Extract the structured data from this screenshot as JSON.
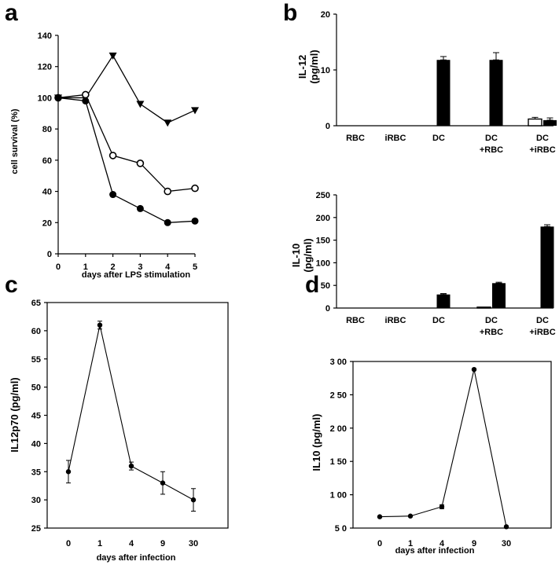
{
  "panels": {
    "a": "a",
    "b": "b",
    "c": "c",
    "d": "d"
  },
  "colors": {
    "ink": "#000000",
    "paper": "#ffffff"
  },
  "chart_data": [
    {
      "id": "a",
      "type": "line",
      "title": "",
      "xlabel": "days after LPS stimulation",
      "ylabel": "cell survival (%)",
      "x": [
        0,
        1,
        2,
        3,
        4,
        5
      ],
      "xticks": [
        "0",
        "1",
        "2",
        "3",
        "4",
        "5"
      ],
      "xlim": [
        0,
        5
      ],
      "ylim": [
        0,
        140
      ],
      "yticks": [
        "0",
        "20",
        "40",
        "60",
        "80",
        "100",
        "120",
        "140"
      ],
      "series": [
        {
          "name": "triangle",
          "marker": "triangle-down",
          "values": [
            100,
            100,
            127,
            96,
            84,
            92
          ]
        },
        {
          "name": "open-circle",
          "marker": "open-circle",
          "values": [
            100,
            102,
            63,
            58,
            40,
            42
          ]
        },
        {
          "name": "filled-circle",
          "marker": "filled-circle",
          "values": [
            100,
            98,
            38,
            29,
            20,
            21
          ]
        }
      ]
    },
    {
      "id": "b-top",
      "type": "bar",
      "ylabel": "IL-12",
      "yunit": "(pg/ml)",
      "categories": [
        [
          "RBC"
        ],
        [
          "iRBC"
        ],
        [
          "DC"
        ],
        [
          "DC",
          "+RBC"
        ],
        [
          "DC",
          "+iRBC"
        ]
      ],
      "ylim": [
        0,
        20
      ],
      "yticks": [
        "0",
        "10",
        "20"
      ],
      "series": [
        {
          "name": "open",
          "values": [
            0,
            0,
            0,
            0,
            1.2
          ],
          "errors": [
            0,
            0,
            0,
            0,
            0.3
          ]
        },
        {
          "name": "filled",
          "values": [
            0,
            0,
            11.8,
            11.8,
            1.0
          ],
          "errors": [
            0,
            0,
            0.6,
            1.3,
            0.4
          ]
        }
      ]
    },
    {
      "id": "b-bottom",
      "type": "bar",
      "ylabel": "IL-10",
      "yunit": "(pg/ml)",
      "categories": [
        [
          "RBC"
        ],
        [
          "iRBC"
        ],
        [
          "DC"
        ],
        [
          "DC",
          "+RBC"
        ],
        [
          "DC",
          "+iRBC"
        ]
      ],
      "ylim": [
        0,
        250
      ],
      "yticks": [
        "0",
        "50",
        "100",
        "150",
        "200",
        "250"
      ],
      "series": [
        {
          "name": "open",
          "values": [
            0,
            0,
            0,
            2,
            0
          ],
          "errors": [
            0,
            0,
            0,
            0,
            0
          ]
        },
        {
          "name": "filled",
          "values": [
            0,
            0,
            30,
            55,
            180
          ],
          "errors": [
            0,
            0,
            2,
            2,
            4
          ]
        }
      ]
    },
    {
      "id": "c",
      "type": "line",
      "xlabel": "days after infection",
      "ylabel": "IL12p70  (pg/ml)",
      "categories": [
        "0",
        "1",
        "4",
        "9",
        "30"
      ],
      "ylim": [
        25,
        65
      ],
      "yticks": [
        "25",
        "30",
        "35",
        "40",
        "45",
        "50",
        "55",
        "60",
        "65"
      ],
      "series": [
        {
          "name": "IL12p70",
          "values": [
            35,
            61,
            36,
            33,
            30
          ],
          "errors": [
            2,
            0.7,
            0.7,
            2,
            2
          ]
        }
      ]
    },
    {
      "id": "d",
      "type": "line",
      "xlabel": "days after infection",
      "ylabel": "IL10  (pg/ml)",
      "categories": [
        "0",
        "1",
        "4",
        "9",
        "30"
      ],
      "ylim": [
        50,
        300
      ],
      "yticks": [
        "5 0",
        "1 00",
        "1 50",
        "2 00",
        "2 50",
        "3 00"
      ],
      "series": [
        {
          "name": "IL10",
          "values": [
            67,
            68,
            82,
            288,
            52
          ],
          "errors": [
            0,
            0,
            3,
            0,
            0
          ]
        }
      ]
    }
  ]
}
